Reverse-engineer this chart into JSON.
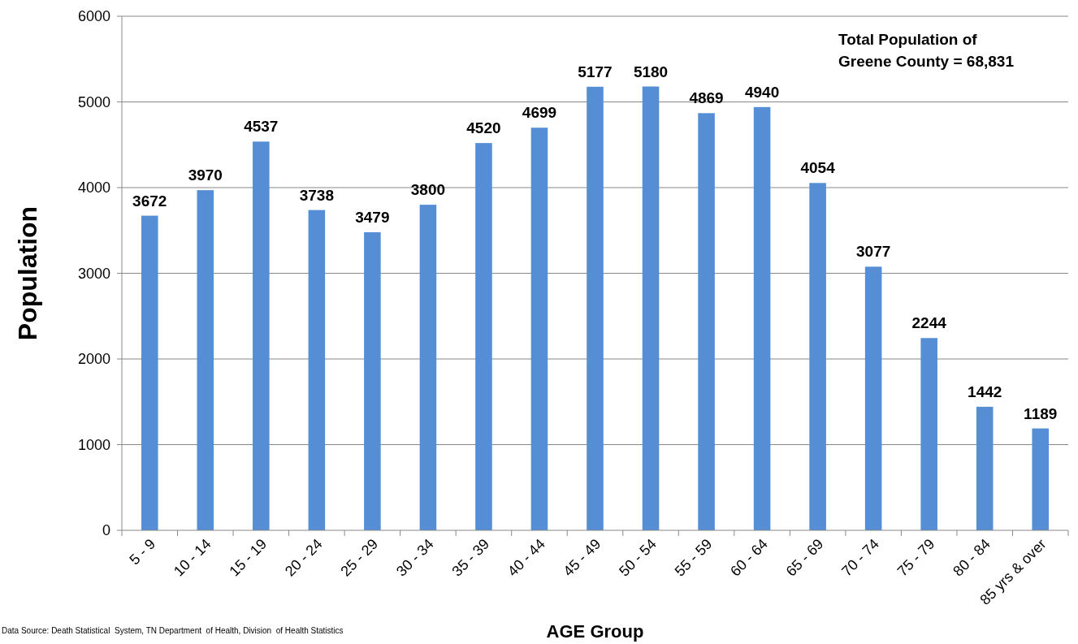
{
  "chart_data": {
    "type": "bar",
    "xlabel": "AGE Group",
    "ylabel": "Population",
    "categories": [
      "5 - 9",
      "10 - 14",
      "15 - 19",
      "20 - 24",
      "25 - 29",
      "30 - 34",
      "35 - 39",
      "40 - 44",
      "45 - 49",
      "50 - 54",
      "55 - 59",
      "60 - 64",
      "65 - 69",
      "70 - 74",
      "75 - 79",
      "80 - 84",
      "85 yrs & over"
    ],
    "values": [
      3672,
      3970,
      4537,
      3738,
      3479,
      3800,
      4520,
      4699,
      5177,
      5180,
      4869,
      4940,
      4054,
      3077,
      2244,
      1442,
      1189
    ],
    "color": "#558ed5",
    "ylim": [
      0,
      6000
    ],
    "yticks": [
      0,
      1000,
      2000,
      3000,
      4000,
      5000,
      6000
    ],
    "grid": "y",
    "data_labels": true,
    "annotations": [
      "Total Population of\nGreene County = 68,831",
      "Data Source: Death Statistical  System, TN Department  of Health, Division  of Health Statistics"
    ]
  }
}
